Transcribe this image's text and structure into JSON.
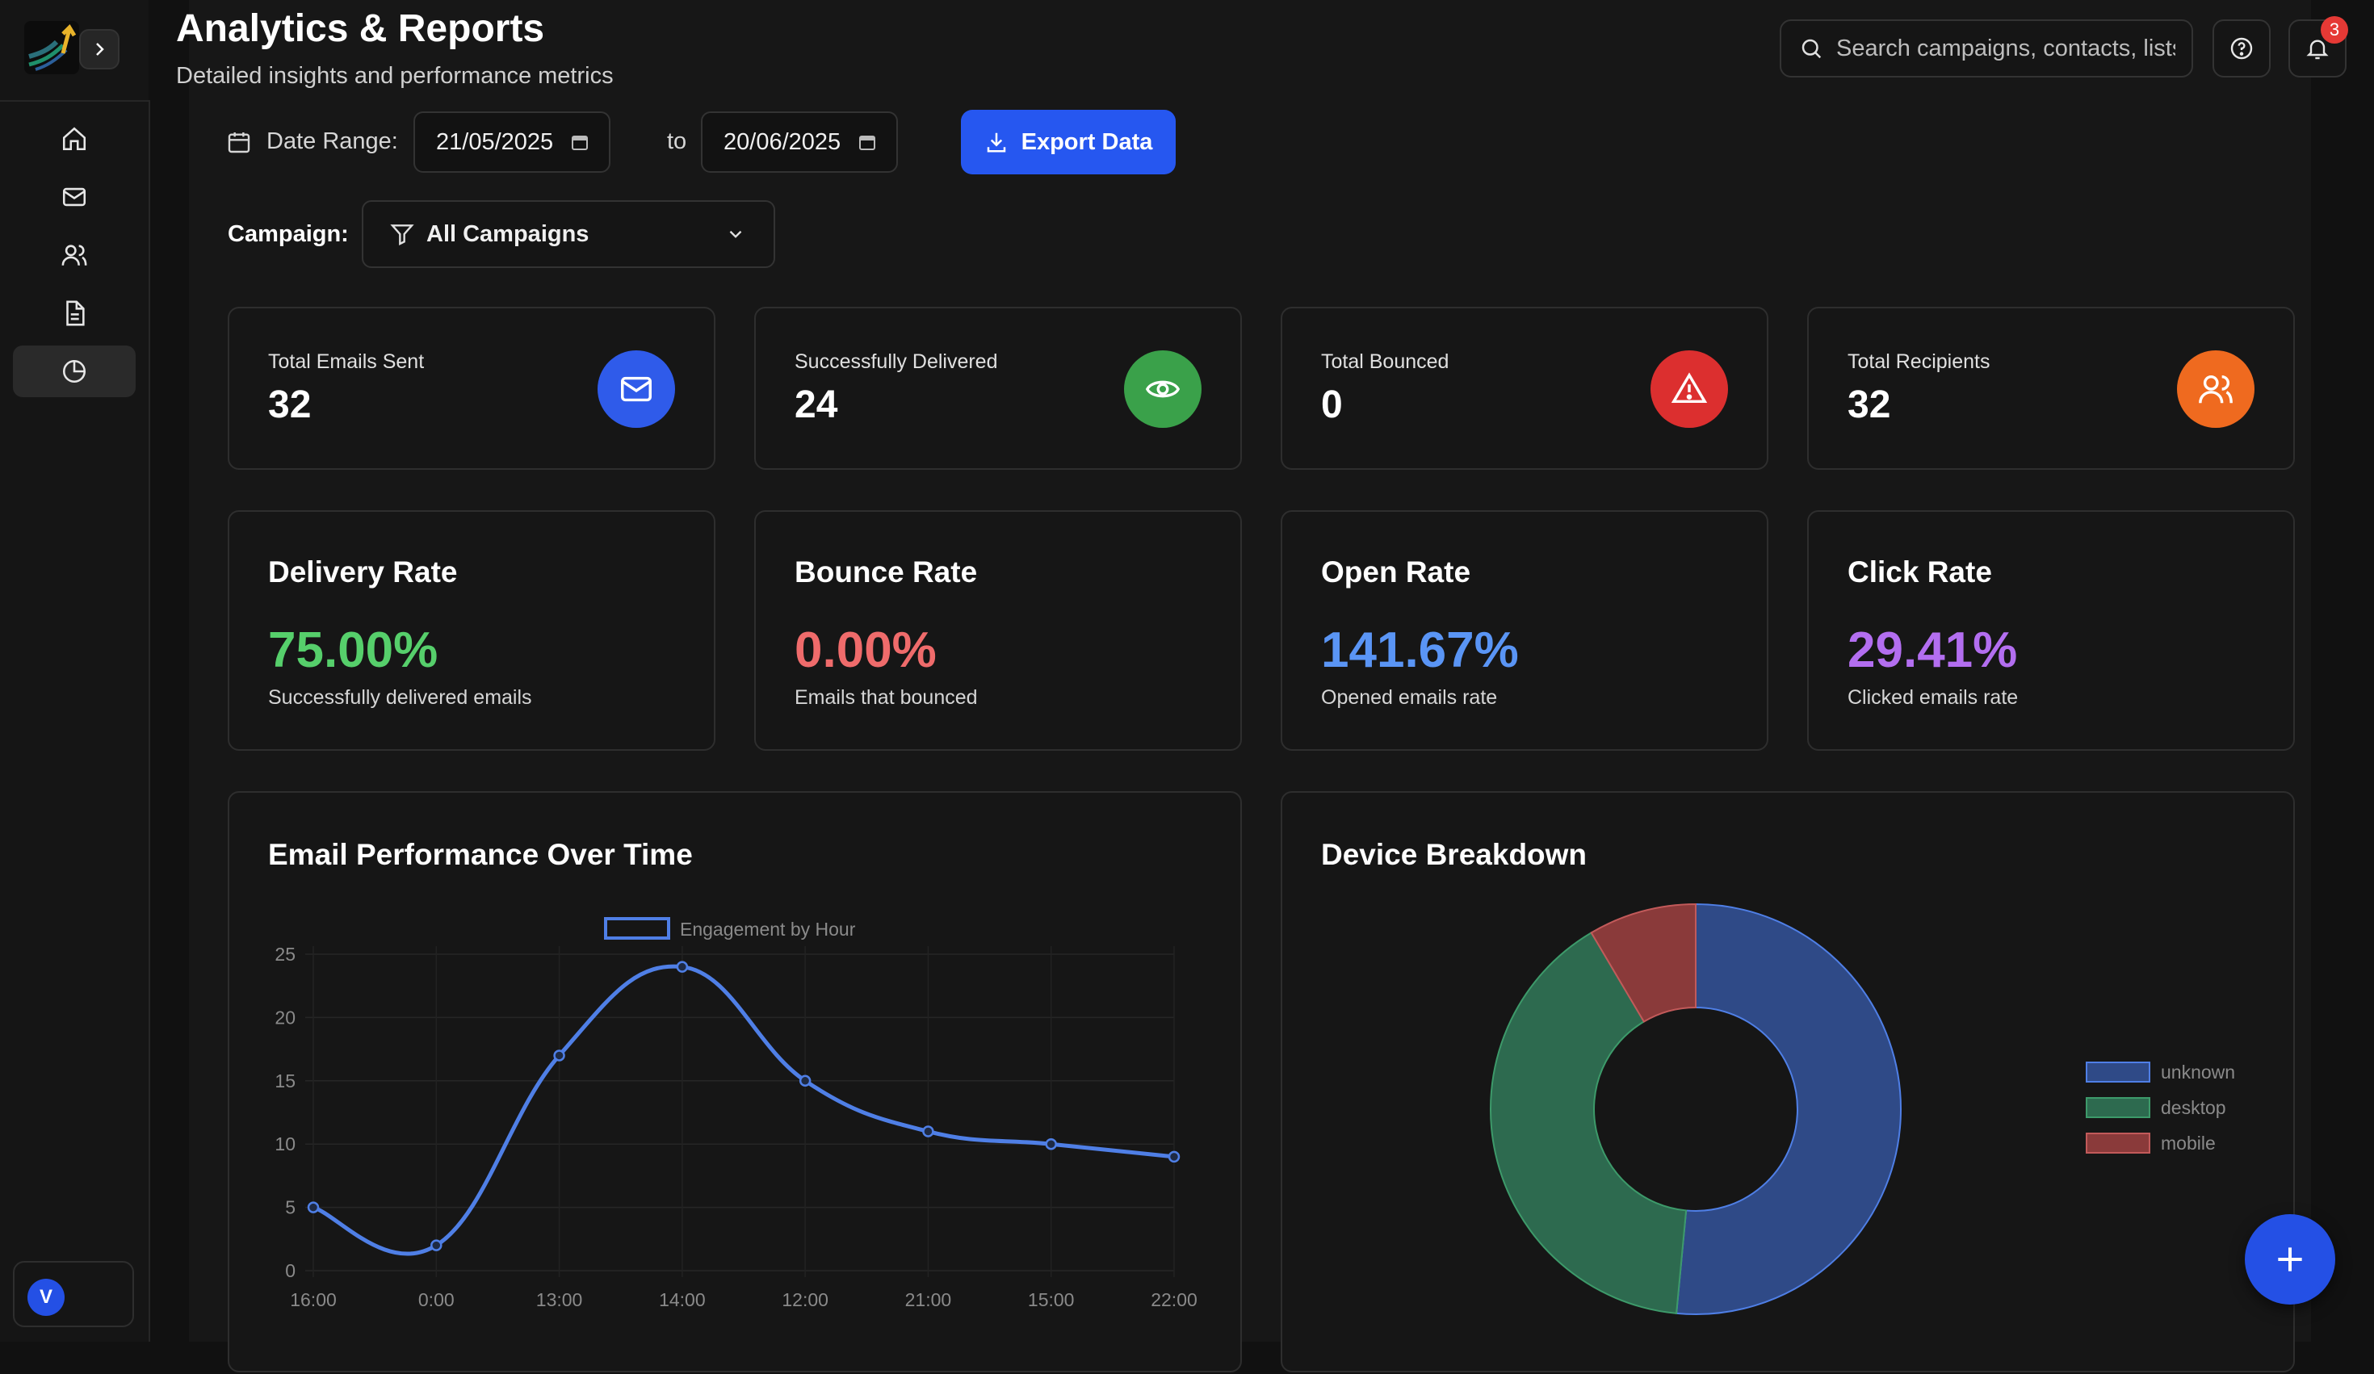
{
  "header": {
    "title": "Analytics & Reports",
    "subtitle": "Detailed insights and performance metrics",
    "search_placeholder": "Search campaigns, contacts, lists...",
    "notification_count": "3"
  },
  "sidebar": {
    "items": [
      {
        "icon": "home-icon"
      },
      {
        "icon": "mail-icon"
      },
      {
        "icon": "users-icon"
      },
      {
        "icon": "document-icon"
      },
      {
        "icon": "pie-chart-icon",
        "active": true
      }
    ],
    "user_initial": "V"
  },
  "filters": {
    "date_range_label": "Date Range:",
    "start_date": "21/05/2025",
    "to_label": "to",
    "end_date": "20/06/2025",
    "export_label": "Export Data",
    "campaign_label": "Campaign:",
    "campaign_value": "All Campaigns"
  },
  "stats": [
    {
      "label": "Total Emails Sent",
      "value": "32",
      "icon": "mail-icon",
      "color": "#2f5bea"
    },
    {
      "label": "Successfully Delivered",
      "value": "24",
      "icon": "eye-icon",
      "color": "#3aa14a"
    },
    {
      "label": "Total Bounced",
      "value": "0",
      "icon": "alert-triangle-icon",
      "color": "#dc2f2f"
    },
    {
      "label": "Total Recipients",
      "value": "32",
      "icon": "users-icon",
      "color": "#ef6a1f"
    }
  ],
  "rates": [
    {
      "title": "Delivery Rate",
      "value": "75.00%",
      "desc": "Successfully delivered emails",
      "color": "#56cf6b"
    },
    {
      "title": "Bounce Rate",
      "value": "0.00%",
      "desc": "Emails that bounced",
      "color": "#ef6b6b"
    },
    {
      "title": "Open Rate",
      "value": "141.67%",
      "desc": "Opened emails rate",
      "color": "#5a95f5"
    },
    {
      "title": "Click Rate",
      "value": "29.41%",
      "desc": "Clicked emails rate",
      "color": "#b36ef0"
    }
  ],
  "charts": {
    "performance_title": "Email Performance Over Time",
    "device_title": "Device Breakdown"
  },
  "chart_data": [
    {
      "type": "line",
      "x": [
        "16:00",
        "0:00",
        "13:00",
        "14:00",
        "12:00",
        "21:00",
        "15:00",
        "22:00"
      ],
      "series": [
        {
          "name": "Engagement by Hour",
          "values": [
            5,
            2,
            17,
            24,
            15,
            11,
            10,
            9
          ]
        }
      ],
      "ylim": [
        0,
        25
      ],
      "yticks": [
        "0",
        "5",
        "10",
        "15",
        "20",
        "25"
      ],
      "color": "#4f7fe6",
      "legend": "top"
    },
    {
      "type": "pie",
      "categories": [
        "unknown",
        "desktop",
        "mobile"
      ],
      "values": [
        51.5,
        40,
        8.5
      ],
      "colors": [
        "#2f4a87",
        "#2d6a4f",
        "#8a3a3a"
      ],
      "borders": [
        "#4f7fe6",
        "#3d9a6a",
        "#c25a5a"
      ],
      "legend": "right"
    }
  ]
}
